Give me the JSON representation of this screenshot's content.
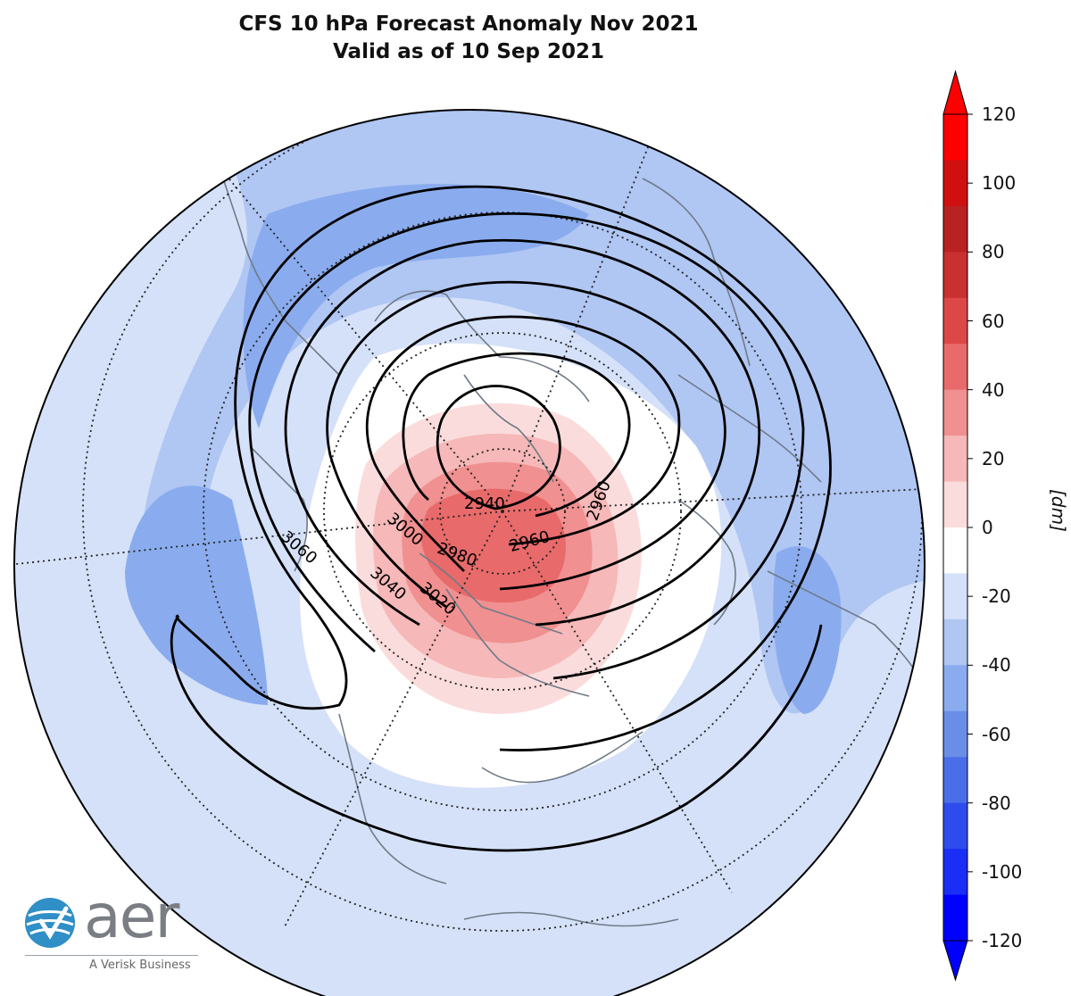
{
  "title": {
    "line1": "CFS 10 hPa Forecast Anomaly Nov 2021",
    "line2": "Valid as of 10 Sep 2021"
  },
  "colorbar": {
    "unit": "[dm]",
    "ticks": [
      "120",
      "100",
      "80",
      "60",
      "40",
      "20",
      "0",
      "-20",
      "-40",
      "-60",
      "-80",
      "-100",
      "-120"
    ],
    "range": [
      -120,
      120
    ],
    "colors": [
      "#0000ff",
      "#1a2ef5",
      "#2e4cee",
      "#4a6ee8",
      "#6a8ee6",
      "#8aacee",
      "#b0c6f3",
      "#d5e1f8",
      "#ffffff",
      "#fbdcdc",
      "#f6b8b8",
      "#f09090",
      "#e86a6a",
      "#dc4848",
      "#c93030",
      "#b82222",
      "#d01010",
      "#ff0000"
    ]
  },
  "contours": {
    "labels": [
      "2940",
      "2960",
      "2960",
      "2980",
      "3000",
      "3020",
      "3040",
      "3060"
    ]
  },
  "logo": {
    "wordmark": "aer",
    "tagline": "A Verisk Business"
  }
}
